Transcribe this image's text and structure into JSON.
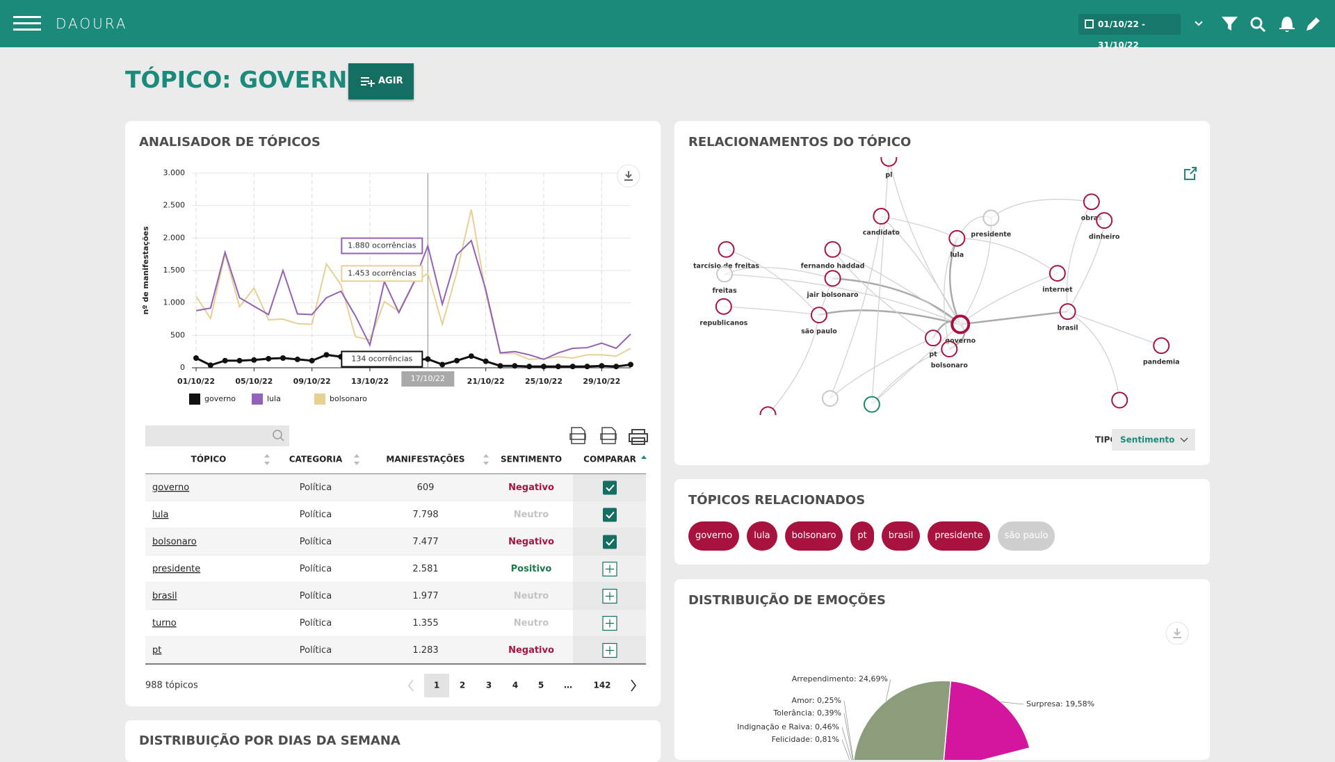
{
  "header": {
    "logo": "DAOURA",
    "date_range": "01/10/22 - 31/10/22"
  },
  "page_title": "TÓPICO: GOVERNO",
  "action_button": "AGIR",
  "chart_data": [
    {
      "type": "line",
      "title": "ANALISADOR DE TÓPICOS",
      "y_label": "nº de manifestações",
      "categories": [
        "01/10/22",
        null,
        null,
        null,
        "05/10/22",
        null,
        null,
        null,
        "09/10/22",
        null,
        null,
        null,
        "13/10/22",
        null,
        null,
        null,
        "17/10/22",
        null,
        null,
        null,
        "21/10/22",
        null,
        null,
        null,
        "25/10/22",
        null,
        null,
        null,
        "29/10/22",
        null,
        null
      ],
      "ylim": [
        0,
        3000
      ],
      "yticks": [
        0,
        500,
        {
          "value": 1000,
          "label": "1.000"
        },
        {
          "value": 1500,
          "label": "1.500"
        },
        {
          "value": 2000,
          "label": "2.000"
        },
        {
          "value": 2500,
          "label": "2.500"
        },
        {
          "value": 3000,
          "label": "3.000"
        }
      ],
      "grid": true,
      "series": [
        {
          "name": "governo",
          "color": "#111111",
          "markers": true,
          "values": [
            150,
            40,
            110,
            110,
            120,
            140,
            150,
            130,
            110,
            200,
            170,
            100,
            140,
            110,
            100,
            120,
            134,
            50,
            110,
            180,
            100,
            30,
            30,
            20,
            20,
            20,
            20,
            20,
            30,
            20,
            50
          ]
        },
        {
          "name": "lula",
          "color": "#9361b8",
          "values": [
            880,
            920,
            1780,
            1080,
            950,
            820,
            1500,
            830,
            820,
            1080,
            1180,
            800,
            350,
            1330,
            850,
            1300,
            1880,
            980,
            1740,
            1960,
            1200,
            230,
            250,
            200,
            130,
            230,
            300,
            310,
            380,
            300,
            520
          ]
        },
        {
          "name": "bolsonaro",
          "color": "#e6d193",
          "values": [
            1100,
            760,
            1760,
            940,
            1230,
            740,
            750,
            680,
            670,
            1600,
            1280,
            480,
            430,
            1020,
            870,
            1310,
            1453,
            670,
            1470,
            2440,
            1150,
            220,
            220,
            130,
            140,
            170,
            150,
            200,
            200,
            180,
            300
          ]
        }
      ],
      "tooltip": {
        "index": 16,
        "labels": [
          "134 ocorrências",
          "1.880 ocorrências",
          "1.453 ocorrências"
        ]
      }
    },
    {
      "type": "pie",
      "title": "DISTRIBUIÇÃO DE EMOÇÕES",
      "values": [
        19.58,
        24.69,
        0.25,
        0.39,
        0.46,
        0.81
      ],
      "value_labels": [
        "Surpresa: 19,58%",
        "Arrependimento: 24,69%",
        "Amor: 0,25%",
        "Tolerância: 0,39%",
        "Indignação e Raiva: 0,46%",
        "Felicidade: 0,81%"
      ],
      "colors": [
        "#d4169f",
        "#8c9d7b",
        "#55c46e",
        "#2e9e4f",
        "#d8d8d8",
        "#7ddc6e"
      ]
    }
  ],
  "table": {
    "columns": [
      "TÓPICO",
      "CATEGORIA",
      "MANIFESTAÇÕES",
      "SENTIMENTO",
      "COMPARAR"
    ],
    "sentiment_colors": {
      "Negativo": "#a8123e",
      "Neutro": "#c4c4c4",
      "Positivo": "#1b7a4a"
    },
    "rows": [
      [
        "governo",
        "Política",
        "609",
        "Negativo",
        true
      ],
      [
        "lula",
        "Política",
        "7.798",
        "Neutro",
        true
      ],
      [
        "bolsonaro",
        "Política",
        "7.477",
        "Negativo",
        true
      ],
      [
        "presidente",
        "Política",
        "2.581",
        "Positivo",
        false
      ],
      [
        "brasil",
        "Política",
        "1.977",
        "Neutro",
        false
      ],
      [
        "turno",
        "Política",
        "1.355",
        "Neutro",
        false
      ],
      [
        "pt",
        "Política",
        "1.283",
        "Negativo",
        false
      ]
    ],
    "total": "988 tópicos",
    "pages": [
      "1",
      "2",
      "3",
      "4",
      "5",
      "…",
      "142"
    ],
    "current_page": 0
  },
  "relationships": {
    "title": "RELACIONAMENTOS DO TÓPICO",
    "type_label": "TIPO",
    "type_value": "Sentimento",
    "nodes": [
      {
        "label": "pl",
        "color": "#a8123e"
      },
      {
        "label": "candidato",
        "color": "#a8123e"
      },
      {
        "label": "presidente",
        "color": "#c8c8c8"
      },
      {
        "label": "obras",
        "color": "#a8123e"
      },
      {
        "label": "dinheiro",
        "color": "#a8123e"
      },
      {
        "label": "lula",
        "color": "#a8123e"
      },
      {
        "label": "fernando haddad",
        "color": "#a8123e"
      },
      {
        "label": "tarcísio de freitas",
        "color": "#a8123e"
      },
      {
        "label": "freitas",
        "color": "#c8c8c8"
      },
      {
        "label": "jair bolsonaro",
        "color": "#a8123e"
      },
      {
        "label": "internet",
        "color": "#a8123e"
      },
      {
        "label": "republicanos",
        "color": "#a8123e"
      },
      {
        "label": "são paulo",
        "color": "#a8123e"
      },
      {
        "label": "brasil",
        "color": "#a8123e"
      },
      {
        "label": "governo",
        "color": "#a8123e"
      },
      {
        "label": "pt",
        "color": "#a8123e"
      },
      {
        "label": "bolsonaro",
        "color": "#a8123e"
      },
      {
        "label": "pandemia",
        "color": "#a8123e"
      }
    ]
  },
  "related_topics": {
    "title": "TÓPICOS RELACIONADOS",
    "topics": [
      {
        "label": "governo",
        "color": "#a8123e"
      },
      {
        "label": "lula",
        "color": "#a8123e"
      },
      {
        "label": "bolsonaro",
        "color": "#a8123e"
      },
      {
        "label": "pt",
        "color": "#a8123e"
      },
      {
        "label": "brasil",
        "color": "#a8123e"
      },
      {
        "label": "presidente",
        "color": "#a8123e"
      },
      {
        "label": "são paulo",
        "color": "#cfcfcf"
      }
    ]
  },
  "weekday_distribution": {
    "title": "DISTRIBUIÇÃO POR DIAS DA SEMANA"
  }
}
